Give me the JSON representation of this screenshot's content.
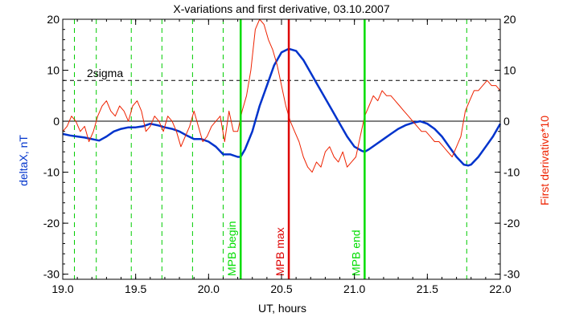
{
  "chart_data": {
    "type": "line",
    "title": "X-variations and first derivative, 03.10.2007",
    "xlabel": "UT, hours",
    "ylabel_left": "deltaX, nT",
    "ylabel_right": "First derivative*10",
    "xlim": [
      19.0,
      22.0
    ],
    "ylim_left": [
      -31,
      20
    ],
    "ylim_right": [
      -31,
      20
    ],
    "x_ticks": [
      "19.0",
      "19.5",
      "20.0",
      "20.5",
      "21.0",
      "21.5",
      "22.0"
    ],
    "y_ticks": [
      "20",
      "10",
      "0",
      "-10",
      "-20",
      "-30"
    ],
    "threshold": {
      "label": "2sigma",
      "value": 8
    },
    "event_lines": [
      {
        "label": "MPB begin",
        "x": 20.22,
        "color": "#00dd00"
      },
      {
        "label": "MPB max",
        "x": 20.55,
        "color": "#dd0000"
      },
      {
        "label": "MPB end",
        "x": 21.07,
        "color": "#00dd00"
      }
    ],
    "dashed_markers": [
      19.08,
      19.23,
      19.47,
      19.68,
      19.89,
      20.1,
      21.77
    ],
    "series": [
      {
        "axis": "left",
        "color": "#0033cc",
        "x": [
          19.0,
          19.05,
          19.1,
          19.15,
          19.2,
          19.25,
          19.3,
          19.35,
          19.4,
          19.45,
          19.5,
          19.55,
          19.6,
          19.65,
          19.7,
          19.75,
          19.8,
          19.85,
          19.9,
          19.95,
          20.0,
          20.05,
          20.1,
          20.15,
          20.2,
          20.22,
          20.25,
          20.3,
          20.35,
          20.4,
          20.45,
          20.5,
          20.55,
          20.6,
          20.65,
          20.7,
          20.75,
          20.8,
          20.85,
          20.9,
          20.95,
          21.0,
          21.05,
          21.07,
          21.1,
          21.15,
          21.2,
          21.25,
          21.3,
          21.35,
          21.4,
          21.45,
          21.5,
          21.55,
          21.6,
          21.65,
          21.7,
          21.75,
          21.78,
          21.8,
          21.85,
          21.9,
          21.95,
          22.0
        ],
        "y": [
          -2.5,
          -2.8,
          -3.0,
          -3.2,
          -3.5,
          -3.8,
          -3.0,
          -2.0,
          -1.5,
          -1.2,
          -1.2,
          -1.0,
          -0.5,
          -0.8,
          -1.2,
          -1.5,
          -2.0,
          -2.8,
          -3.5,
          -3.5,
          -4.0,
          -5.0,
          -6.5,
          -6.5,
          -7.0,
          -7.0,
          -5.5,
          -2.0,
          3.0,
          7.0,
          11.0,
          13.5,
          14.2,
          13.8,
          12.0,
          9.5,
          7.0,
          4.5,
          2.0,
          -0.5,
          -3.0,
          -5.0,
          -5.8,
          -6.0,
          -5.5,
          -4.5,
          -3.5,
          -2.5,
          -1.5,
          -0.8,
          -0.3,
          0.0,
          -0.5,
          -1.5,
          -3.0,
          -5.0,
          -7.0,
          -8.5,
          -8.7,
          -8.5,
          -7.0,
          -5.0,
          -3.0,
          -0.5
        ]
      },
      {
        "axis": "right",
        "color": "#ee2200",
        "x": [
          19.0,
          19.03,
          19.06,
          19.09,
          19.12,
          19.15,
          19.18,
          19.21,
          19.24,
          19.27,
          19.3,
          19.33,
          19.36,
          19.39,
          19.42,
          19.45,
          19.48,
          19.51,
          19.54,
          19.57,
          19.6,
          19.63,
          19.66,
          19.69,
          19.72,
          19.75,
          19.78,
          19.81,
          19.84,
          19.87,
          19.9,
          19.93,
          19.96,
          19.99,
          20.02,
          20.05,
          20.08,
          20.11,
          20.14,
          20.17,
          20.2,
          20.23,
          20.26,
          20.29,
          20.32,
          20.35,
          20.38,
          20.41,
          20.44,
          20.47,
          20.5,
          20.53,
          20.56,
          20.59,
          20.62,
          20.65,
          20.68,
          20.71,
          20.74,
          20.77,
          20.8,
          20.83,
          20.86,
          20.89,
          20.92,
          20.95,
          20.98,
          21.01,
          21.04,
          21.07,
          21.1,
          21.13,
          21.16,
          21.19,
          21.22,
          21.25,
          21.28,
          21.31,
          21.34,
          21.37,
          21.4,
          21.43,
          21.46,
          21.49,
          21.52,
          21.55,
          21.58,
          21.61,
          21.64,
          21.67,
          21.7,
          21.73,
          21.76,
          21.79,
          21.82,
          21.85,
          21.88,
          21.91,
          21.94,
          21.97,
          22.0
        ],
        "y": [
          -2,
          -1,
          1,
          0,
          -2,
          -1,
          -4,
          -2,
          1,
          3,
          4,
          2,
          1,
          3,
          2,
          0,
          3,
          4,
          2,
          -2,
          -1,
          1,
          0,
          -2,
          1,
          0,
          -2,
          -5,
          -3,
          -1,
          2,
          -1,
          -4,
          -3,
          -1,
          0,
          1,
          -4,
          2,
          -2,
          -2,
          2,
          5,
          10,
          18,
          20,
          19,
          16,
          14,
          11,
          7,
          3,
          0,
          -2,
          -4,
          -7,
          -9,
          -10,
          -8,
          -9,
          -6,
          -5,
          -7,
          -8,
          -6,
          -9,
          -8,
          -7,
          -3,
          1,
          3,
          5,
          4,
          6,
          5,
          5,
          4,
          3,
          2,
          1,
          0,
          -1,
          -2,
          -2,
          -3,
          -4,
          -4,
          -5,
          -6,
          -7,
          -5,
          -3,
          2,
          4,
          6,
          6,
          7,
          8,
          7,
          7,
          6
        ]
      }
    ]
  }
}
